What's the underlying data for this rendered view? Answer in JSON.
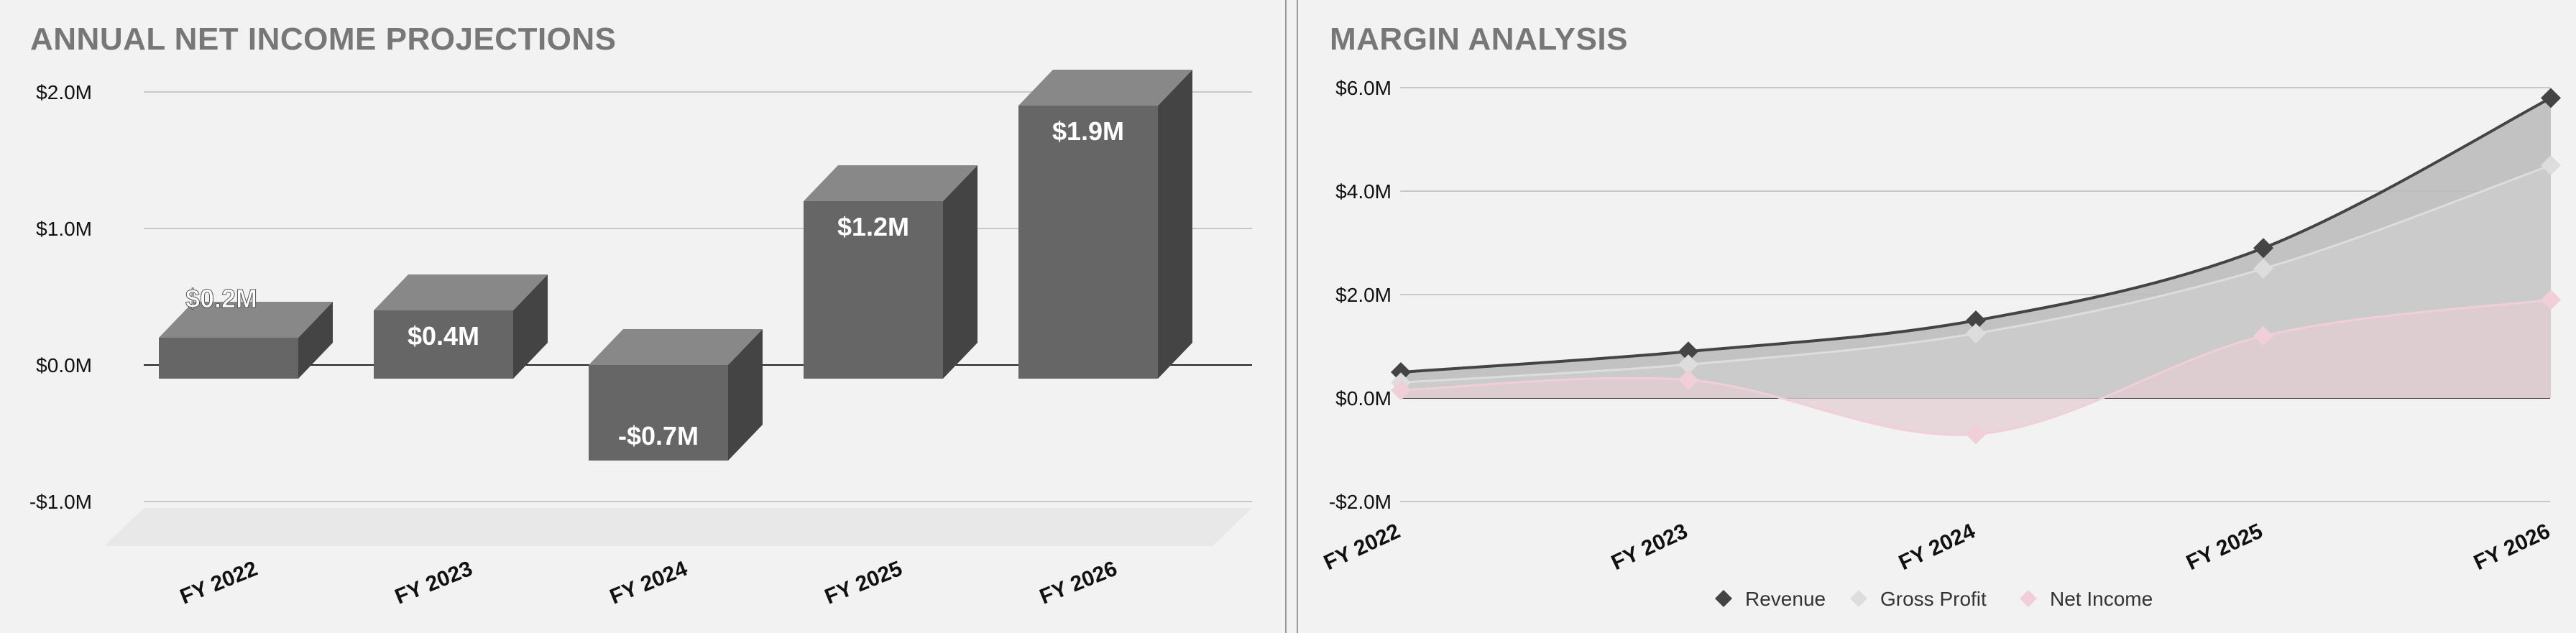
{
  "chart_data": [
    {
      "type": "bar",
      "title": "ANNUAL NET INCOME PROJECTIONS",
      "categories": [
        "FY 2022",
        "FY 2023",
        "FY 2024",
        "FY 2025",
        "FY 2026"
      ],
      "values": [
        0.2,
        0.4,
        -0.7,
        1.2,
        1.9
      ],
      "data_labels": [
        "$0.2M",
        "$0.4M",
        "-$0.7M",
        "$1.2M",
        "$1.9M"
      ],
      "y_ticks": [
        {
          "value": 2.0,
          "label": "$2.0M"
        },
        {
          "value": 1.0,
          "label": "$1.0M"
        },
        {
          "value": 0.0,
          "label": "$0.0M"
        },
        {
          "value": -1.0,
          "label": "-$1.0M"
        }
      ],
      "ylim": [
        -1.0,
        2.0
      ],
      "style": "3d",
      "grid": true,
      "colors": {
        "front": "#666666",
        "top": "#888888",
        "side": "#444444"
      }
    },
    {
      "type": "area",
      "title": "MARGIN ANALYSIS",
      "categories": [
        "FY 2022",
        "FY 2023",
        "FY 2024",
        "FY 2025",
        "FY 2026"
      ],
      "series": [
        {
          "name": "Revenue",
          "values": [
            0.5,
            0.9,
            1.5,
            2.9,
            5.8
          ],
          "color": "#444444",
          "fill": "#bdbdbd"
        },
        {
          "name": "Gross Profit",
          "values": [
            0.3,
            0.65,
            1.25,
            2.5,
            4.5
          ],
          "color": "#dddddd",
          "fill": "#cccccc"
        },
        {
          "name": "Net Income",
          "values": [
            0.15,
            0.35,
            -0.7,
            1.2,
            1.9
          ],
          "color": "#f0cfd8",
          "fill": "#e3cdd2"
        }
      ],
      "y_ticks": [
        {
          "value": 6.0,
          "label": "$6.0M"
        },
        {
          "value": 4.0,
          "label": "$4.0M"
        },
        {
          "value": 2.0,
          "label": "$2.0M"
        },
        {
          "value": 0.0,
          "label": "$0.0M"
        },
        {
          "value": -2.0,
          "label": "-$2.0M"
        }
      ],
      "ylim": [
        -2.0,
        6.0
      ],
      "grid": true,
      "legend_position": "bottom"
    }
  ]
}
